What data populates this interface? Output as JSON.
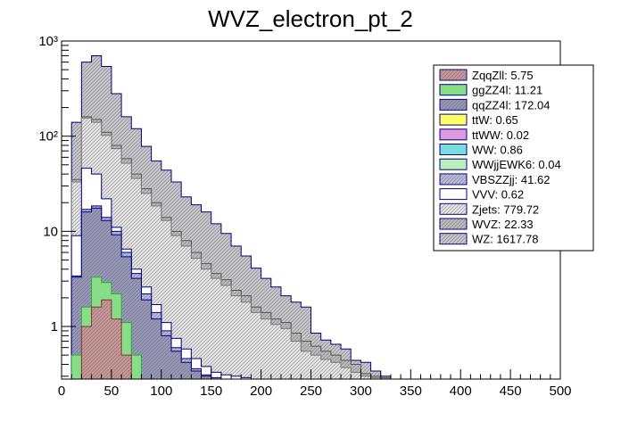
{
  "chart_data": {
    "type": "stacked-histogram",
    "title": "WVZ_electron_pt_2",
    "xlabel": "",
    "ylabel": "",
    "xlim": [
      0,
      500
    ],
    "ylim": [
      0.28,
      1000
    ],
    "yscale": "log",
    "grid": false,
    "legend_position": "top-right",
    "x_ticks": [
      "0",
      "50",
      "100",
      "150",
      "200",
      "250",
      "300",
      "350",
      "400",
      "450",
      "500"
    ],
    "y_ticks": [
      {
        "value": 1,
        "label": "1"
      },
      {
        "value": 10,
        "label": "10"
      },
      {
        "value": 100,
        "label": "10²"
      },
      {
        "value": 1000,
        "label": "10³"
      }
    ],
    "bin_edges": [
      10,
      20,
      30,
      40,
      50,
      60,
      70,
      80,
      90,
      100,
      110,
      120,
      130,
      140,
      150,
      160,
      170,
      180,
      190,
      200,
      210,
      220,
      230,
      240,
      250,
      260,
      270,
      280,
      290,
      300,
      310,
      320,
      330
    ],
    "stack_totals": [
      {
        "name": "WZ",
        "values": [
          140,
          600,
          700,
          540,
          280,
          160,
          120,
          78,
          55,
          44,
          33,
          23,
          19,
          16,
          12,
          9.5,
          7,
          5.5,
          4.1,
          3.2,
          2.6,
          2.1,
          1.8,
          1.6,
          0.85,
          0.72,
          0.65,
          0.58,
          0.44,
          0.42,
          0.34,
          0.3
        ]
      },
      {
        "name": "WVZ",
        "values": [
          35,
          160,
          150,
          110,
          80,
          58,
          40,
          28,
          20,
          14,
          10,
          8,
          6,
          4.6,
          3.6,
          3.1,
          2.4,
          2.1,
          1.6,
          1.4,
          1.2,
          1.1,
          0.85,
          0.7,
          0.62,
          0.55,
          0.5,
          0.44,
          0.4,
          0.32,
          0.3,
          0.29
        ]
      },
      {
        "name": "Zjets",
        "values": [
          33,
          155,
          140,
          102,
          74,
          52,
          36,
          25,
          18.5,
          13,
          9,
          7,
          5.2,
          4,
          3.2,
          2.7,
          2.1,
          1.8,
          1.4,
          1.2,
          1.05,
          0.95,
          0.7,
          0.55,
          0.5,
          0.45,
          0.42,
          0.37,
          0.33,
          0.3,
          0.29,
          0.28
        ]
      },
      {
        "name": "VVV",
        "values": [
          9,
          46,
          40,
          22,
          11,
          6.5,
          4,
          2.6,
          1.7,
          1.1,
          0.75,
          0.58,
          0.46,
          0.38,
          0.33,
          0.31,
          0.3,
          0.29,
          0.28,
          0.28,
          0.28,
          0.28,
          0.28,
          0.28,
          0.28,
          0.28,
          0.28,
          0.28,
          0.28,
          0.28,
          0.28,
          0.28
        ]
      },
      {
        "name": "VBSZZjj",
        "values": [
          3.4,
          17,
          18.5,
          14,
          10,
          6,
          3.6,
          2.2,
          1.4,
          0.9,
          0.6,
          0.46,
          0.36,
          0.31,
          0.29,
          0.28,
          0.28,
          0.28,
          0.28,
          0.28,
          0.28,
          0.28,
          0.28,
          0.28,
          0.28,
          0.28,
          0.28,
          0.28,
          0.28,
          0.28,
          0.28,
          0.28
        ]
      },
      {
        "name": "qqZZ4l",
        "values": [
          3.3,
          16,
          17.5,
          13,
          9.2,
          5.4,
          3.2,
          1.9,
          1.2,
          0.8,
          0.55,
          0.42,
          0.34,
          0.3,
          0.28,
          0.28,
          0.28,
          0.28,
          0.28,
          0.28,
          0.28,
          0.28,
          0.28,
          0.28,
          0.28,
          0.28,
          0.28,
          0.28,
          0.28,
          0.28,
          0.28,
          0.28
        ]
      },
      {
        "name": "ggZZ4l",
        "values": [
          0.5,
          1.6,
          3.3,
          2.9,
          2.2,
          1.1,
          0.5,
          0.28,
          0.28,
          0.28,
          0.28,
          0.28,
          0.28,
          0.28,
          0.28,
          0.28,
          0.28,
          0.28,
          0.28,
          0.28,
          0.28,
          0.28,
          0.28,
          0.28,
          0.28,
          0.28,
          0.28,
          0.28,
          0.28,
          0.28,
          0.28,
          0.28
        ]
      },
      {
        "name": "ZqqZll",
        "values": [
          0.28,
          1.0,
          1.6,
          1.9,
          1.2,
          0.5,
          0.28,
          0.28,
          0.28,
          0.28,
          0.28,
          0.28,
          0.28,
          0.28,
          0.28,
          0.28,
          0.28,
          0.28,
          0.28,
          0.28,
          0.28,
          0.28,
          0.28,
          0.28,
          0.28,
          0.28,
          0.28,
          0.28,
          0.28,
          0.28,
          0.28,
          0.28
        ]
      }
    ],
    "legend": [
      {
        "label": "ZqqZll: 5.75",
        "color": "#cc9999",
        "pattern": "hatch"
      },
      {
        "label": "ggZZ4l: 11.21",
        "color": "#88dd88",
        "pattern": "solid"
      },
      {
        "label": "qqZZ4l: 172.04",
        "color": "#9999bb",
        "pattern": "hatch"
      },
      {
        "label": "ttW: 0.65",
        "color": "#ffff66",
        "pattern": "solid"
      },
      {
        "label": "ttWW: 0.02",
        "color": "#dd99dd",
        "pattern": "solid"
      },
      {
        "label": "WW: 0.86",
        "color": "#77dddd",
        "pattern": "solid"
      },
      {
        "label": "WWjjEWK6: 0.04",
        "color": "#bbeebb",
        "pattern": "solid"
      },
      {
        "label": "VBSZZjj: 41.62",
        "color": "#bbbbdd",
        "pattern": "hatch"
      },
      {
        "label": "VVV: 0.62",
        "color": "#ffffff",
        "pattern": "solid"
      },
      {
        "label": "Zjets: 779.72",
        "color": "#e6e6e6",
        "pattern": "hatch"
      },
      {
        "label": "WVZ: 22.33",
        "color": "#bdbdbd",
        "pattern": "hatch"
      },
      {
        "label": "WZ: 1617.78",
        "color": "#c8c8cc",
        "pattern": "hatch"
      }
    ],
    "style": {
      "WZ": {
        "fill": "#c8c8cc",
        "stroke": "#000080",
        "pattern": "hatch"
      },
      "WVZ": {
        "fill": "#bdbdbd",
        "stroke": "#555555",
        "pattern": "hatch"
      },
      "Zjets": {
        "fill": "#e6e6e6",
        "stroke": "#777777",
        "pattern": "hatch"
      },
      "VVV": {
        "fill": "#ffffff",
        "stroke": "#000080",
        "pattern": "solid"
      },
      "VBSZZjj": {
        "fill": "#bbbbdd",
        "stroke": "#000080",
        "pattern": "hatch"
      },
      "qqZZ4l": {
        "fill": "#9999bb",
        "stroke": "#000080",
        "pattern": "hatch"
      },
      "ggZZ4l": {
        "fill": "#88dd88",
        "stroke": "#33aa33",
        "pattern": "solid"
      },
      "ZqqZll": {
        "fill": "#cc9999",
        "stroke": "#883333",
        "pattern": "hatch"
      }
    }
  }
}
